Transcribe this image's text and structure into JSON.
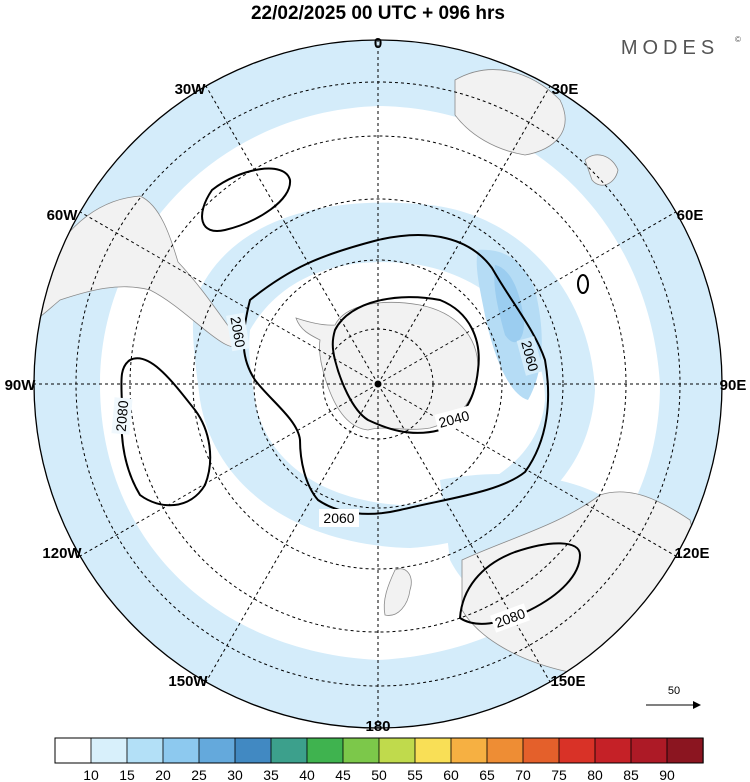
{
  "header": {
    "title": "22/02/2025  00 UTC  + 096 hrs",
    "brand": "MODES",
    "brand_mark": "©"
  },
  "map": {
    "projection": "south-polar-stereographic",
    "longitude_labels": [
      {
        "lon": 0,
        "text": "0"
      },
      {
        "lon": 30,
        "text": "30E"
      },
      {
        "lon": 60,
        "text": "60E"
      },
      {
        "lon": 90,
        "text": "90E"
      },
      {
        "lon": 120,
        "text": "120E"
      },
      {
        "lon": 150,
        "text": "150E"
      },
      {
        "lon": 180,
        "text": "180"
      },
      {
        "lon": -150,
        "text": "150W"
      },
      {
        "lon": -120,
        "text": "120W"
      },
      {
        "lon": -90,
        "text": "90W"
      },
      {
        "lon": -60,
        "text": "60W"
      },
      {
        "lon": -30,
        "text": "30W"
      }
    ],
    "contour_labels": [
      "2060",
      "2080",
      "2060",
      "2040",
      "2060",
      "2080"
    ],
    "colors": {
      "land": "#f2f2f2",
      "coastline": "#8a8a8a",
      "shading_light": "#d4ecfa",
      "shading_medium": "#b5dcf5",
      "shading_dark": "#9bcdf0"
    }
  },
  "colorbar": {
    "ticks": [
      "10",
      "15",
      "20",
      "25",
      "30",
      "35",
      "40",
      "45",
      "50",
      "55",
      "60",
      "65",
      "70",
      "75",
      "80",
      "85",
      "90"
    ],
    "colors": [
      "#ffffff",
      "#d8f0fb",
      "#b3e0f7",
      "#8dc9ef",
      "#64a9dc",
      "#4189c2",
      "#3ca08c",
      "#3fb34f",
      "#7cc84a",
      "#c0da4c",
      "#f9df56",
      "#f6b042",
      "#ee8d34",
      "#e4602b",
      "#d93227",
      "#c52127",
      "#ad1a26",
      "#8b1520"
    ]
  },
  "scale_arrow": {
    "label": "50"
  }
}
